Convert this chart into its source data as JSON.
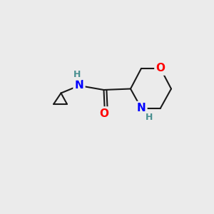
{
  "background_color": "#ebebeb",
  "bond_color": "#1a1a1a",
  "bond_width": 1.5,
  "atom_colors": {
    "O": "#ff0000",
    "N": "#0000ff",
    "C": "#1a1a1a",
    "H": "#4a9090"
  },
  "font_size_atom": 11,
  "font_size_H": 9,
  "figsize": [
    3.0,
    3.0
  ],
  "dpi": 100
}
